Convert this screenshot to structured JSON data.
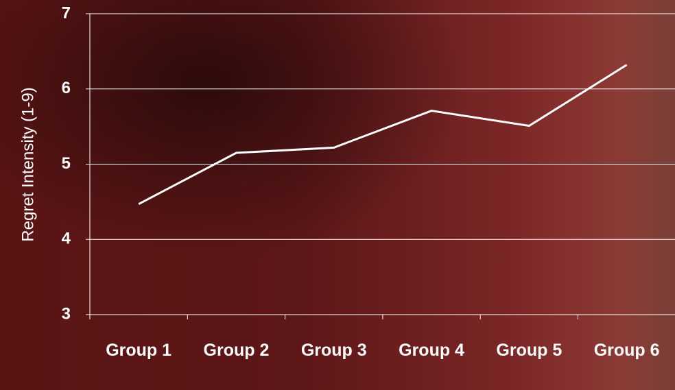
{
  "chart_data": {
    "type": "line",
    "y_label": "Regret Intensity (1-9)",
    "categories": [
      "Group 1",
      "Group 2",
      "Group 3",
      "Group 4",
      "Group 5",
      "Group 6"
    ],
    "values": [
      4.47,
      5.15,
      5.22,
      5.71,
      5.51,
      6.32
    ],
    "color": "#ffffff",
    "ylim": [
      3,
      7
    ],
    "yticks": [
      3,
      4,
      5,
      6,
      7
    ],
    "grid": true
  }
}
